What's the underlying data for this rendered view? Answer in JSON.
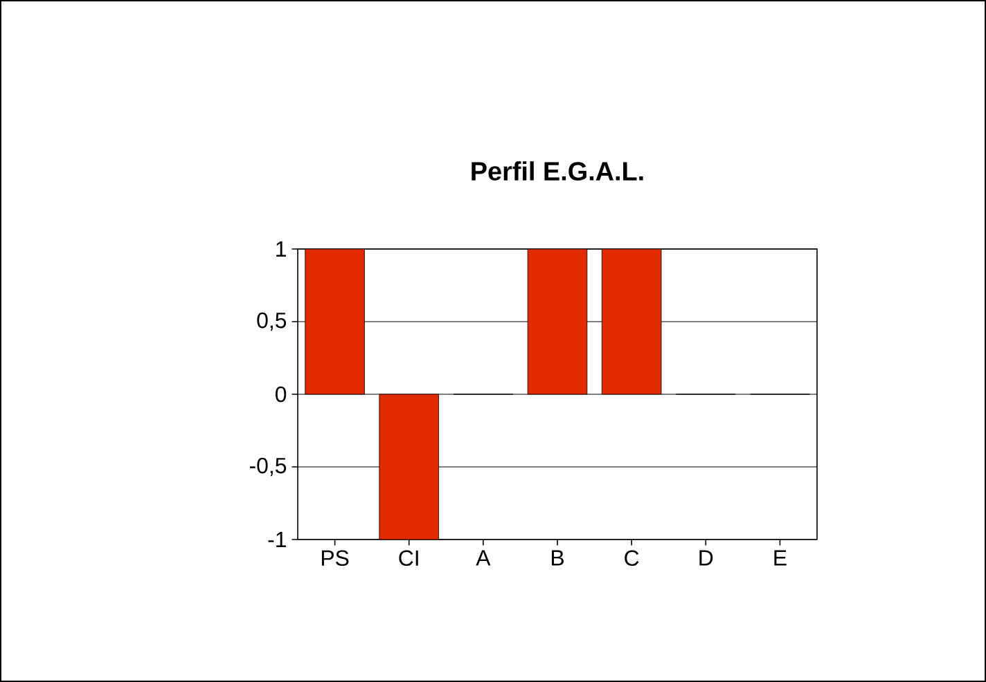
{
  "chart_data": {
    "type": "bar",
    "title": "Perfil E.G.A.L.",
    "categories": [
      "PS",
      "CI",
      "A",
      "B",
      "C",
      "D",
      "E"
    ],
    "values": [
      1,
      -1,
      0,
      1,
      1,
      0,
      0
    ],
    "color": "#e02a00",
    "ylim": [
      -1,
      1
    ],
    "yticks": [
      -1,
      {
        "value": -0.5,
        "label": "-0,5"
      },
      0,
      {
        "value": 0.5,
        "label": "0,5"
      },
      1
    ],
    "grid": "y"
  }
}
